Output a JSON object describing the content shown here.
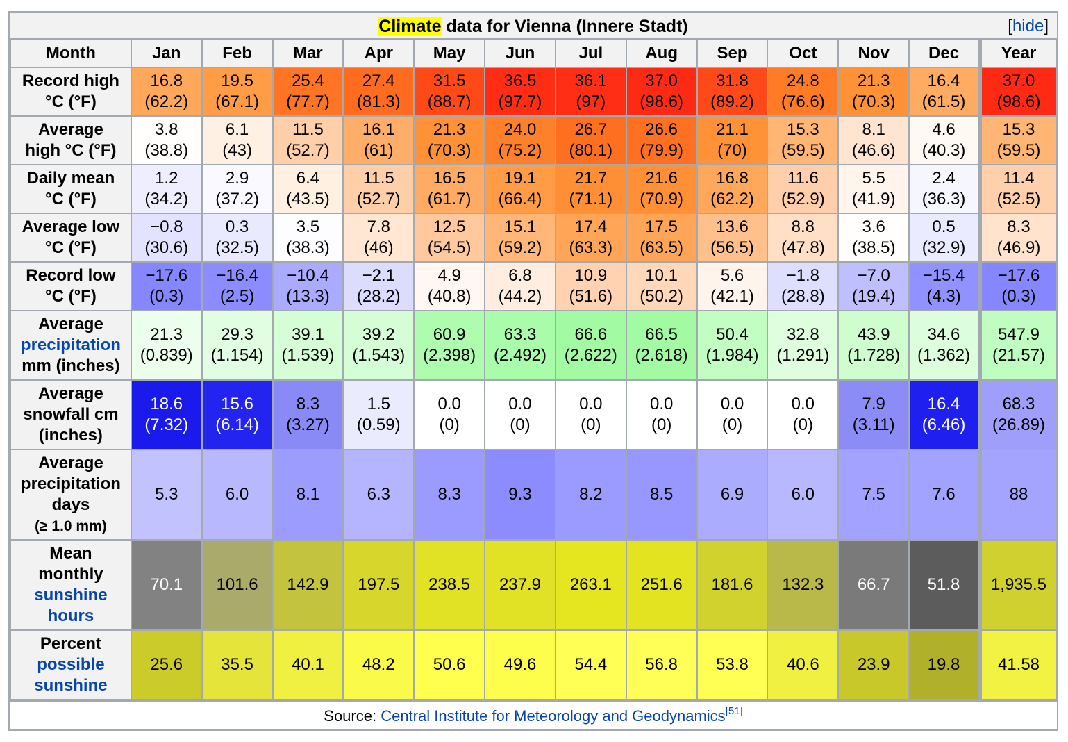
{
  "caption": {
    "title_highlight": "Climate",
    "title_rest": " data for Vienna (Innere Stadt)",
    "hide_open": "[",
    "hide_link": "hide",
    "hide_close": "]"
  },
  "header": {
    "corner": "Month",
    "months": [
      "Jan",
      "Feb",
      "Mar",
      "Apr",
      "May",
      "Jun",
      "Jul",
      "Aug",
      "Sep",
      "Oct",
      "Nov",
      "Dec"
    ],
    "year": "Year"
  },
  "rows": [
    {
      "label_lines": [
        "Record high",
        "°C (°F)"
      ],
      "cells": [
        {
          "v": "16.8",
          "sub": "(62.2)",
          "bg": "#ffa85b"
        },
        {
          "v": "19.5",
          "sub": "(67.1)",
          "bg": "#ff9c45"
        },
        {
          "v": "25.4",
          "sub": "(77.7)",
          "bg": "#ff7523"
        },
        {
          "v": "27.4",
          "sub": "(81.3)",
          "bg": "#ff6c1f"
        },
        {
          "v": "31.5",
          "sub": "(88.7)",
          "bg": "#ff4a18"
        },
        {
          "v": "36.5",
          "sub": "(97.7)",
          "bg": "#ff2d14"
        },
        {
          "v": "36.1",
          "sub": "(97)",
          "bg": "#ff2e14"
        },
        {
          "v": "37.0",
          "sub": "(98.6)",
          "bg": "#ff2a14"
        },
        {
          "v": "31.8",
          "sub": "(89.2)",
          "bg": "#ff4918"
        },
        {
          "v": "24.8",
          "sub": "(76.6)",
          "bg": "#ff7b25"
        },
        {
          "v": "21.3",
          "sub": "(70.3)",
          "bg": "#ff9136"
        },
        {
          "v": "16.4",
          "sub": "(61.5)",
          "bg": "#ffab62"
        }
      ],
      "year": {
        "v": "37.0",
        "sub": "(98.6)",
        "bg": "#ff2a14"
      }
    },
    {
      "label_lines": [
        "Average",
        "high °C (°F)"
      ],
      "cells": [
        {
          "v": "3.8",
          "sub": "(38.8)",
          "bg": "#fffefc"
        },
        {
          "v": "6.1",
          "sub": "(43)",
          "bg": "#fff0e4"
        },
        {
          "v": "11.5",
          "sub": "(52.7)",
          "bg": "#ffcfa9"
        },
        {
          "v": "16.1",
          "sub": "(61)",
          "bg": "#ffae6a"
        },
        {
          "v": "21.3",
          "sub": "(70.3)",
          "bg": "#ff9136"
        },
        {
          "v": "24.0",
          "sub": "(75.2)",
          "bg": "#ff802a"
        },
        {
          "v": "26.7",
          "sub": "(80.1)",
          "bg": "#ff6f20"
        },
        {
          "v": "26.6",
          "sub": "(79.9)",
          "bg": "#ff7020"
        },
        {
          "v": "21.1",
          "sub": "(70)",
          "bg": "#ff9237"
        },
        {
          "v": "15.3",
          "sub": "(59.5)",
          "bg": "#ffb573"
        },
        {
          "v": "8.1",
          "sub": "(46.6)",
          "bg": "#ffe5d0"
        },
        {
          "v": "4.6",
          "sub": "(40.3)",
          "bg": "#fff9f4"
        }
      ],
      "year": {
        "v": "15.3",
        "sub": "(59.5)",
        "bg": "#ffb573"
      }
    },
    {
      "label_lines": [
        "Daily mean",
        "°C (°F)"
      ],
      "cells": [
        {
          "v": "1.2",
          "sub": "(34.2)",
          "bg": "#eeeeff"
        },
        {
          "v": "2.9",
          "sub": "(37.2)",
          "bg": "#f9f9ff"
        },
        {
          "v": "6.4",
          "sub": "(43.5)",
          "bg": "#fff0e2"
        },
        {
          "v": "11.5",
          "sub": "(52.7)",
          "bg": "#ffcfa9"
        },
        {
          "v": "16.5",
          "sub": "(61.7)",
          "bg": "#ffab63"
        },
        {
          "v": "19.1",
          "sub": "(66.4)",
          "bg": "#ff9c45"
        },
        {
          "v": "21.7",
          "sub": "(71.1)",
          "bg": "#ff8f35"
        },
        {
          "v": "21.6",
          "sub": "(70.9)",
          "bg": "#ff9035"
        },
        {
          "v": "16.8",
          "sub": "(62.2)",
          "bg": "#ffa85b"
        },
        {
          "v": "11.6",
          "sub": "(52.9)",
          "bg": "#ffceab"
        },
        {
          "v": "5.5",
          "sub": "(41.9)",
          "bg": "#fff5ec"
        },
        {
          "v": "2.4",
          "sub": "(36.3)",
          "bg": "#f6f6ff"
        }
      ],
      "year": {
        "v": "11.4",
        "sub": "(52.5)",
        "bg": "#ffd0ab"
      }
    },
    {
      "label_lines": [
        "Average low",
        "°C (°F)"
      ],
      "cells": [
        {
          "v": "−0.8",
          "sub": "(30.6)",
          "bg": "#e3e3ff"
        },
        {
          "v": "0.3",
          "sub": "(32.5)",
          "bg": "#eaeaff"
        },
        {
          "v": "3.5",
          "sub": "(38.3)",
          "bg": "#fdfdff"
        },
        {
          "v": "7.8",
          "sub": "(46)",
          "bg": "#ffe7d3"
        },
        {
          "v": "12.5",
          "sub": "(54.5)",
          "bg": "#ffc89d"
        },
        {
          "v": "15.1",
          "sub": "(59.2)",
          "bg": "#ffb676"
        },
        {
          "v": "17.4",
          "sub": "(63.3)",
          "bg": "#ffa558"
        },
        {
          "v": "17.5",
          "sub": "(63.5)",
          "bg": "#ffa557"
        },
        {
          "v": "13.6",
          "sub": "(56.5)",
          "bg": "#ffc08c"
        },
        {
          "v": "8.8",
          "sub": "(47.8)",
          "bg": "#ffe0c7"
        },
        {
          "v": "3.6",
          "sub": "(38.5)",
          "bg": "#fffefd"
        },
        {
          "v": "0.5",
          "sub": "(32.9)",
          "bg": "#ebebff"
        }
      ],
      "year": {
        "v": "8.3",
        "sub": "(46.9)",
        "bg": "#ffe3cd"
      }
    },
    {
      "label_lines": [
        "Record low",
        "°C (°F)"
      ],
      "cells": [
        {
          "v": "−17.6",
          "sub": "(0.3)",
          "bg": "#8686ff"
        },
        {
          "v": "−16.4",
          "sub": "(2.5)",
          "bg": "#8c8cff"
        },
        {
          "v": "−10.4",
          "sub": "(13.3)",
          "bg": "#aaaaff"
        },
        {
          "v": "−2.1",
          "sub": "(28.2)",
          "bg": "#dcdcff"
        },
        {
          "v": "4.9",
          "sub": "(40.8)",
          "bg": "#fff8f2"
        },
        {
          "v": "6.8",
          "sub": "(44.2)",
          "bg": "#ffede0"
        },
        {
          "v": "10.9",
          "sub": "(51.6)",
          "bg": "#ffd3b1"
        },
        {
          "v": "10.1",
          "sub": "(50.2)",
          "bg": "#ffd8b9"
        },
        {
          "v": "5.6",
          "sub": "(42.1)",
          "bg": "#fff4ec"
        },
        {
          "v": "−1.8",
          "sub": "(28.8)",
          "bg": "#dedeff"
        },
        {
          "v": "−7.0",
          "sub": "(19.4)",
          "bg": "#bfbfff"
        },
        {
          "v": "−15.4",
          "sub": "(4.3)",
          "bg": "#9191ff"
        }
      ],
      "year": {
        "v": "−17.6",
        "sub": "(0.3)",
        "bg": "#8686ff"
      }
    },
    {
      "label_lines": [
        "Average",
        "precipitation",
        "mm (inches)"
      ],
      "label_link_index": 1,
      "cells": [
        {
          "v": "21.3",
          "sub": "(0.839)",
          "bg": "#ecfeec"
        },
        {
          "v": "29.3",
          "sub": "(1.154)",
          "bg": "#e2fee2"
        },
        {
          "v": "39.1",
          "sub": "(1.539)",
          "bg": "#d6fed6"
        },
        {
          "v": "39.2",
          "sub": "(1.543)",
          "bg": "#d6fed6"
        },
        {
          "v": "60.9",
          "sub": "(2.398)",
          "bg": "#aefdae"
        },
        {
          "v": "63.3",
          "sub": "(2.492)",
          "bg": "#a9fca9"
        },
        {
          "v": "66.6",
          "sub": "(2.622)",
          "bg": "#a2fba2"
        },
        {
          "v": "66.5",
          "sub": "(2.618)",
          "bg": "#a2fba2"
        },
        {
          "v": "50.4",
          "sub": "(1.984)",
          "bg": "#c2fdc2"
        },
        {
          "v": "32.8",
          "sub": "(1.291)",
          "bg": "#defede"
        },
        {
          "v": "43.9",
          "sub": "(1.728)",
          "bg": "#cefece"
        },
        {
          "v": "34.6",
          "sub": "(1.362)",
          "bg": "#dcfedc"
        }
      ],
      "year": {
        "v": "547.9",
        "sub": "(21.57)",
        "bg": "#c0fdc0"
      }
    },
    {
      "label_lines": [
        "Average",
        "snowfall cm",
        "(inches)"
      ],
      "cells": [
        {
          "v": "18.6",
          "sub": "(7.32)",
          "bg": "#1a1aec",
          "inv": true
        },
        {
          "v": "15.6",
          "sub": "(6.14)",
          "bg": "#2424f1",
          "inv": true
        },
        {
          "v": "8.3",
          "sub": "(3.27)",
          "bg": "#8a8af6"
        },
        {
          "v": "1.5",
          "sub": "(0.59)",
          "bg": "#ebebfe"
        },
        {
          "v": "0.0",
          "sub": "(0)",
          "bg": "#ffffff"
        },
        {
          "v": "0.0",
          "sub": "(0)",
          "bg": "#ffffff"
        },
        {
          "v": "0.0",
          "sub": "(0)",
          "bg": "#ffffff"
        },
        {
          "v": "0.0",
          "sub": "(0)",
          "bg": "#ffffff"
        },
        {
          "v": "0.0",
          "sub": "(0)",
          "bg": "#ffffff"
        },
        {
          "v": "0.0",
          "sub": "(0)",
          "bg": "#ffffff"
        },
        {
          "v": "7.9",
          "sub": "(3.11)",
          "bg": "#8c8cf6"
        },
        {
          "v": "16.4",
          "sub": "(6.46)",
          "bg": "#1f1ff0",
          "inv": true
        }
      ],
      "year": {
        "v": "68.3",
        "sub": "(26.89)",
        "bg": "#9f9ffb"
      }
    },
    {
      "label_lines": [
        "Average",
        "precipitation",
        "days"
      ],
      "label_small": "(≥ 1.0 mm)",
      "cells": [
        {
          "v": "5.3",
          "bg": "#c2c2ff"
        },
        {
          "v": "6.0",
          "bg": "#b8b8ff"
        },
        {
          "v": "8.1",
          "bg": "#9c9cff"
        },
        {
          "v": "6.3",
          "bg": "#b4b4ff"
        },
        {
          "v": "8.3",
          "bg": "#9a9aff"
        },
        {
          "v": "9.3",
          "bg": "#8c8cff"
        },
        {
          "v": "8.2",
          "bg": "#9b9bff"
        },
        {
          "v": "8.5",
          "bg": "#9797ff"
        },
        {
          "v": "6.9",
          "bg": "#acacff"
        },
        {
          "v": "6.0",
          "bg": "#b8b8ff"
        },
        {
          "v": "7.5",
          "bg": "#a3a3ff"
        },
        {
          "v": "7.6",
          "bg": "#a2a2ff"
        }
      ],
      "year": {
        "v": "88",
        "bg": "#a4a4ff"
      }
    },
    {
      "label_lines": [
        "Mean",
        "monthly",
        "sunshine",
        "hours"
      ],
      "label_link_index": [
        2,
        3
      ],
      "cells": [
        {
          "v": "70.1",
          "bg": "#828282",
          "inv": true
        },
        {
          "v": "101.6",
          "bg": "#aaaa6a"
        },
        {
          "v": "142.9",
          "bg": "#c3c33e"
        },
        {
          "v": "197.5",
          "bg": "#d6d62c"
        },
        {
          "v": "238.5",
          "bg": "#e1e125"
        },
        {
          "v": "237.9",
          "bg": "#e1e125"
        },
        {
          "v": "263.1",
          "bg": "#e6e620"
        },
        {
          "v": "251.6",
          "bg": "#e3e322"
        },
        {
          "v": "181.6",
          "bg": "#d2d22f"
        },
        {
          "v": "132.3",
          "bg": "#b9b94a"
        },
        {
          "v": "66.7",
          "bg": "#7a7a7a",
          "inv": true
        },
        {
          "v": "51.8",
          "bg": "#5c5c5c",
          "inv": true
        }
      ],
      "year": {
        "v": "1,935.5",
        "bg": "#d0d02f"
      }
    },
    {
      "label_lines": [
        "Percent",
        "possible",
        "sunshine"
      ],
      "label_link_index": [
        1,
        2
      ],
      "cells": [
        {
          "v": "25.6",
          "bg": "#cbcb2a"
        },
        {
          "v": "35.5",
          "bg": "#e4e43a"
        },
        {
          "v": "40.1",
          "bg": "#f0f040"
        },
        {
          "v": "48.2",
          "bg": "#fafa48"
        },
        {
          "v": "50.6",
          "bg": "#ffff4e"
        },
        {
          "v": "49.6",
          "bg": "#fdfd4c"
        },
        {
          "v": "54.4",
          "bg": "#ffff55"
        },
        {
          "v": "56.8",
          "bg": "#ffff58"
        },
        {
          "v": "53.8",
          "bg": "#ffff54"
        },
        {
          "v": "40.6",
          "bg": "#f0f040"
        },
        {
          "v": "23.9",
          "bg": "#c8c82a"
        },
        {
          "v": "19.8",
          "bg": "#b0b02a"
        }
      ],
      "year": {
        "v": "41.58",
        "bg": "#f2f242"
      }
    }
  ],
  "source": {
    "prefix": "Source: ",
    "link": "Central Institute for Meteorology and Geodynamics",
    "ref": "[51]"
  },
  "colors": {
    "border": "#a2a9b1",
    "header_bg": "#f2f2f2",
    "link": "#0645ad",
    "highlight": "#ffff00"
  }
}
